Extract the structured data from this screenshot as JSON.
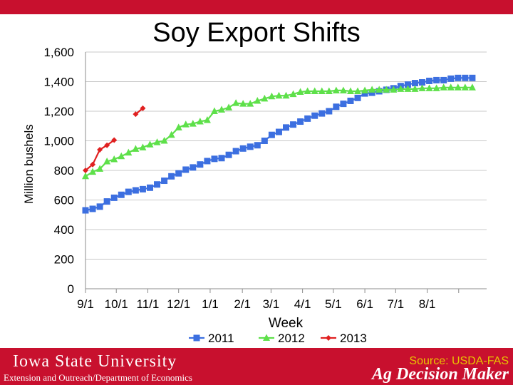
{
  "colors": {
    "brand_red": "#c8102e",
    "source_yellow": "#e8c400"
  },
  "slide": {
    "title": "Soy Export Shifts"
  },
  "footer": {
    "university": "Iowa State University",
    "department": "Extension and Outreach/Department of Economics",
    "source": "Source: USDA-FAS",
    "brand": "Ag Decision Maker"
  },
  "chart_data": {
    "type": "line",
    "title": "Soy Export Shifts",
    "xlabel": "Week",
    "ylabel": "Million bushels",
    "ylim": [
      0,
      1600
    ],
    "yticks": [
      0,
      200,
      400,
      600,
      800,
      1000,
      1200,
      1400,
      1600
    ],
    "ytick_labels": [
      "0",
      "200",
      "400",
      "600",
      "800",
      "1,000",
      "1,200",
      "1,400",
      "1,600"
    ],
    "xlim": [
      0,
      56
    ],
    "xticks": [
      0,
      4.3,
      8.7,
      13,
      17.4,
      21.9,
      25.9,
      30.3,
      34.6,
      39,
      43.3,
      47.7,
      52.1
    ],
    "xtick_labels": [
      "9/1",
      "10/1",
      "11/1",
      "12/1",
      "1/1",
      "2/1",
      "3/1",
      "4/1",
      "5/1",
      "6/1",
      "7/1",
      "8/1",
      ""
    ],
    "grid": true,
    "legend_position": "bottom",
    "series": [
      {
        "name": "2011",
        "color": "#3c6fe0",
        "marker": "square",
        "x": [
          0,
          1,
          2,
          3,
          4,
          5,
          6,
          7,
          8,
          9,
          10,
          11,
          12,
          13,
          14,
          15,
          16,
          17,
          18,
          19,
          20,
          21,
          22,
          23,
          24,
          25,
          26,
          27,
          28,
          29,
          30,
          31,
          32,
          33,
          34,
          35,
          36,
          37,
          38,
          39,
          40,
          41,
          42,
          43,
          44,
          45,
          46,
          47,
          48,
          49,
          50,
          51,
          52,
          53,
          54
        ],
        "values": [
          530,
          540,
          555,
          590,
          615,
          635,
          655,
          665,
          673,
          683,
          705,
          730,
          760,
          780,
          805,
          820,
          840,
          863,
          878,
          883,
          905,
          930,
          948,
          960,
          970,
          1000,
          1040,
          1060,
          1090,
          1110,
          1130,
          1150,
          1170,
          1185,
          1200,
          1230,
          1250,
          1270,
          1290,
          1320,
          1325,
          1335,
          1345,
          1355,
          1370,
          1380,
          1390,
          1395,
          1405,
          1410,
          1410,
          1420,
          1425,
          1425,
          1425
        ]
      },
      {
        "name": "2012",
        "color": "#5ee04a",
        "marker": "triangle",
        "x": [
          0,
          1,
          2,
          3,
          4,
          5,
          6,
          7,
          8,
          9,
          10,
          11,
          12,
          13,
          14,
          15,
          16,
          17,
          18,
          19,
          20,
          21,
          22,
          23,
          24,
          25,
          26,
          27,
          28,
          29,
          30,
          31,
          32,
          33,
          34,
          35,
          36,
          37,
          38,
          39,
          40,
          41,
          42,
          43,
          44,
          45,
          46,
          47,
          48,
          49,
          50,
          51,
          52,
          53,
          54
        ],
        "values": [
          760,
          790,
          810,
          860,
          875,
          895,
          920,
          945,
          955,
          975,
          990,
          1000,
          1040,
          1090,
          1110,
          1115,
          1130,
          1140,
          1200,
          1210,
          1225,
          1255,
          1250,
          1250,
          1270,
          1285,
          1300,
          1305,
          1305,
          1315,
          1330,
          1335,
          1335,
          1335,
          1335,
          1340,
          1340,
          1335,
          1335,
          1340,
          1345,
          1345,
          1345,
          1345,
          1350,
          1350,
          1350,
          1355,
          1355,
          1355,
          1360,
          1360,
          1360,
          1360,
          1360
        ]
      },
      {
        "name": "2013",
        "color": "#e02020",
        "marker": "diamond",
        "segments": [
          {
            "x": [
              0,
              1,
              2,
              3,
              4
            ],
            "values": [
              800,
              840,
              940,
              970,
              1005
            ]
          },
          {
            "x": [
              7,
              8
            ],
            "values": [
              1180,
              1220
            ]
          }
        ]
      }
    ]
  }
}
